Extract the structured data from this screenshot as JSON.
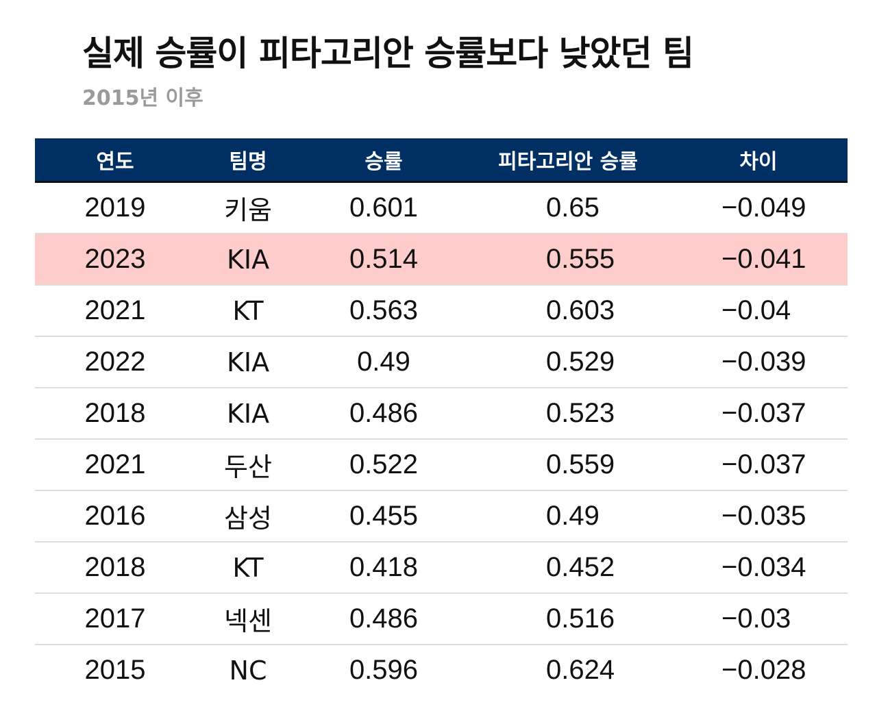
{
  "title": "실제 승률이 피타고리안 승률보다 낮았던 팀",
  "subtitle": "2015년 이후",
  "colors": {
    "header_bg": "#002f63",
    "highlight_bg": "#ffcccc",
    "subtitle_text": "#9a9a9a"
  },
  "chart_data": {
    "type": "table",
    "title": "실제 승률이 피타고리안 승률보다 낮았던 팀",
    "subtitle": "2015년 이후",
    "columns": [
      "연도",
      "팀명",
      "승률",
      "피타고리안 승률",
      "차이"
    ],
    "rows": [
      {
        "year": "2019",
        "team": "키움",
        "win_pct": "0.601",
        "pyth_pct": "0.65",
        "diff": "−0.049",
        "highlight": false
      },
      {
        "year": "2023",
        "team": "KIA",
        "win_pct": "0.514",
        "pyth_pct": "0.555",
        "diff": "−0.041",
        "highlight": true
      },
      {
        "year": "2021",
        "team": "KT",
        "win_pct": "0.563",
        "pyth_pct": "0.603",
        "diff": "−0.04",
        "highlight": false
      },
      {
        "year": "2022",
        "team": "KIA",
        "win_pct": "0.49",
        "pyth_pct": "0.529",
        "diff": "−0.039",
        "highlight": false
      },
      {
        "year": "2018",
        "team": "KIA",
        "win_pct": "0.486",
        "pyth_pct": "0.523",
        "diff": "−0.037",
        "highlight": false
      },
      {
        "year": "2021",
        "team": "두산",
        "win_pct": "0.522",
        "pyth_pct": "0.559",
        "diff": "−0.037",
        "highlight": false
      },
      {
        "year": "2016",
        "team": "삼성",
        "win_pct": "0.455",
        "pyth_pct": "0.49",
        "diff": "−0.035",
        "highlight": false
      },
      {
        "year": "2018",
        "team": "KT",
        "win_pct": "0.418",
        "pyth_pct": "0.452",
        "diff": "−0.034",
        "highlight": false
      },
      {
        "year": "2017",
        "team": "넥센",
        "win_pct": "0.486",
        "pyth_pct": "0.516",
        "diff": "−0.03",
        "highlight": false
      },
      {
        "year": "2015",
        "team": "NC",
        "win_pct": "0.596",
        "pyth_pct": "0.624",
        "diff": "−0.028",
        "highlight": false
      }
    ]
  }
}
